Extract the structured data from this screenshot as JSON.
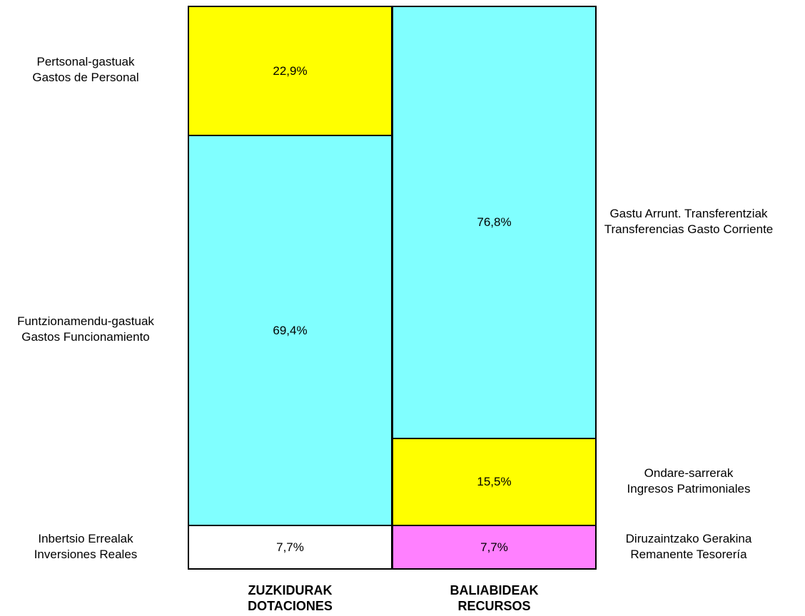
{
  "colors": {
    "yellow": "#ffff00",
    "cyan": "#80ffff",
    "pink": "#ff80ff",
    "white": "#ffffff",
    "border": "#000000"
  },
  "chart_data": {
    "type": "bar",
    "subtype": "100% stacked, two columns",
    "categories": [
      {
        "line1": "ZUZKIDURAK",
        "line2": "DOTACIONES"
      },
      {
        "line1": "BALIABIDEAK",
        "line2": "RECURSOS"
      }
    ],
    "columns": [
      {
        "segments_top_to_bottom": [
          {
            "label_eu": "Pertsonal-gastuak",
            "label_es": "Gastos de Personal",
            "value": 22.9,
            "display": "22,9%",
            "color": "yellow"
          },
          {
            "label_eu": "Funtzionamendu-gastuak",
            "label_es": "Gastos Funcionamiento",
            "value": 69.4,
            "display": "69,4%",
            "color": "cyan"
          },
          {
            "label_eu": "Inbertsio Errealak",
            "label_es": "Inversiones Reales",
            "value": 7.7,
            "display": "7,7%",
            "color": "white"
          }
        ]
      },
      {
        "segments_top_to_bottom": [
          {
            "label_eu": "Gastu Arrunt. Transferentziak",
            "label_es": "Transferencias Gasto Corriente",
            "value": 76.8,
            "display": "76,8%",
            "color": "cyan"
          },
          {
            "label_eu": "Ondare-sarrerak",
            "label_es": "Ingresos Patrimoniales",
            "value": 15.5,
            "display": "15,5%",
            "color": "yellow"
          },
          {
            "label_eu": "Diruzaintzako Gerakina",
            "label_es": "Remanente Tesorería",
            "value": 7.7,
            "display": "7,7%",
            "color": "pink"
          }
        ]
      }
    ],
    "ylim": [
      0,
      100
    ]
  }
}
